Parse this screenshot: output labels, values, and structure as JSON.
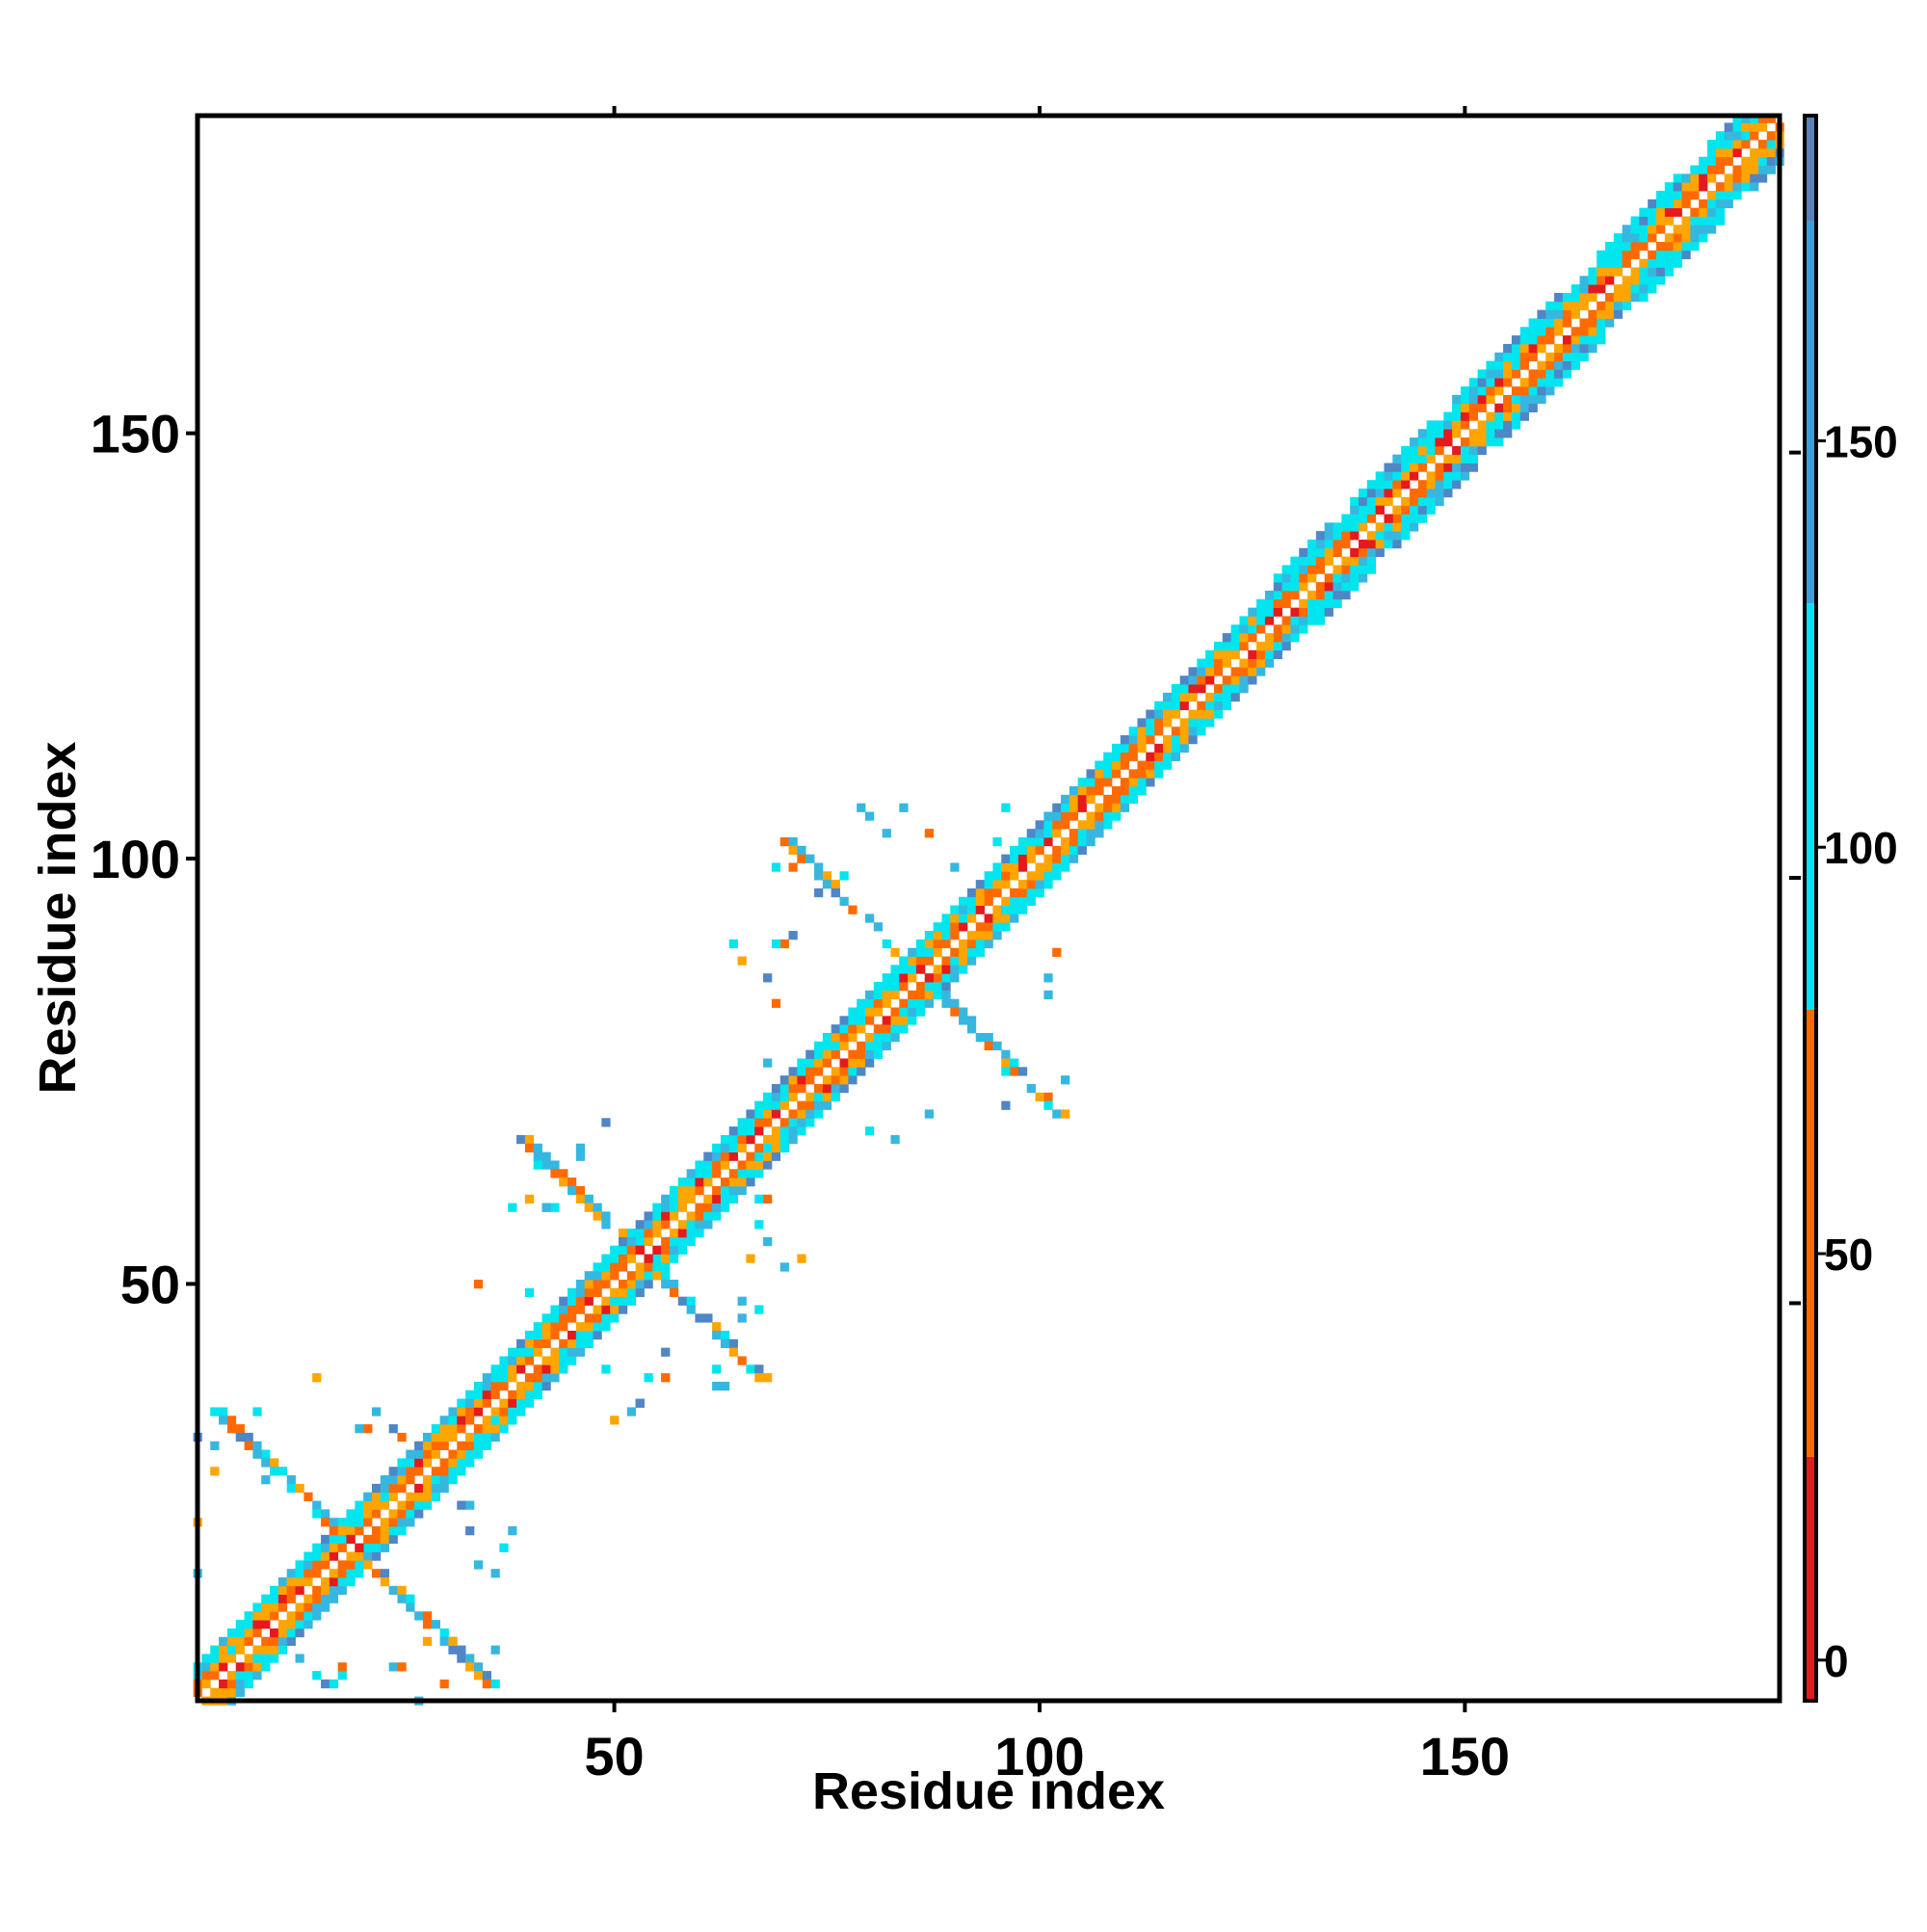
{
  "chart_data": {
    "type": "heatmap",
    "title": "",
    "xlabel": "Residue index",
    "ylabel": "Residue index",
    "x_range": [
      1,
      187
    ],
    "y_range": [
      1,
      187
    ],
    "x_ticks": [
      50,
      100,
      150
    ],
    "y_ticks": [
      50,
      100,
      150
    ],
    "colorbar": {
      "ticks": [
        0,
        50,
        100,
        150
      ],
      "range": [
        -5,
        190
      ],
      "bands": [
        {
          "from": -5,
          "to": 25,
          "color": "#e41a1c"
        },
        {
          "from": 25,
          "to": 80,
          "color": "#ff6a00"
        },
        {
          "from": 80,
          "to": 130,
          "color": "#00e5ee"
        },
        {
          "from": 130,
          "to": 177,
          "color": "#3a9fd9"
        },
        {
          "from": 177,
          "to": 190,
          "color": "#5a80b8"
        }
      ]
    },
    "colors": {
      "red": "#e41a1c",
      "orange": "#ff6a00",
      "gold": "#ffa500",
      "cyan": "#00e5ee",
      "lightblue": "#36b7e0",
      "steelblue": "#4f86c6"
    },
    "grid": false,
    "legend": "colorbar-right"
  }
}
